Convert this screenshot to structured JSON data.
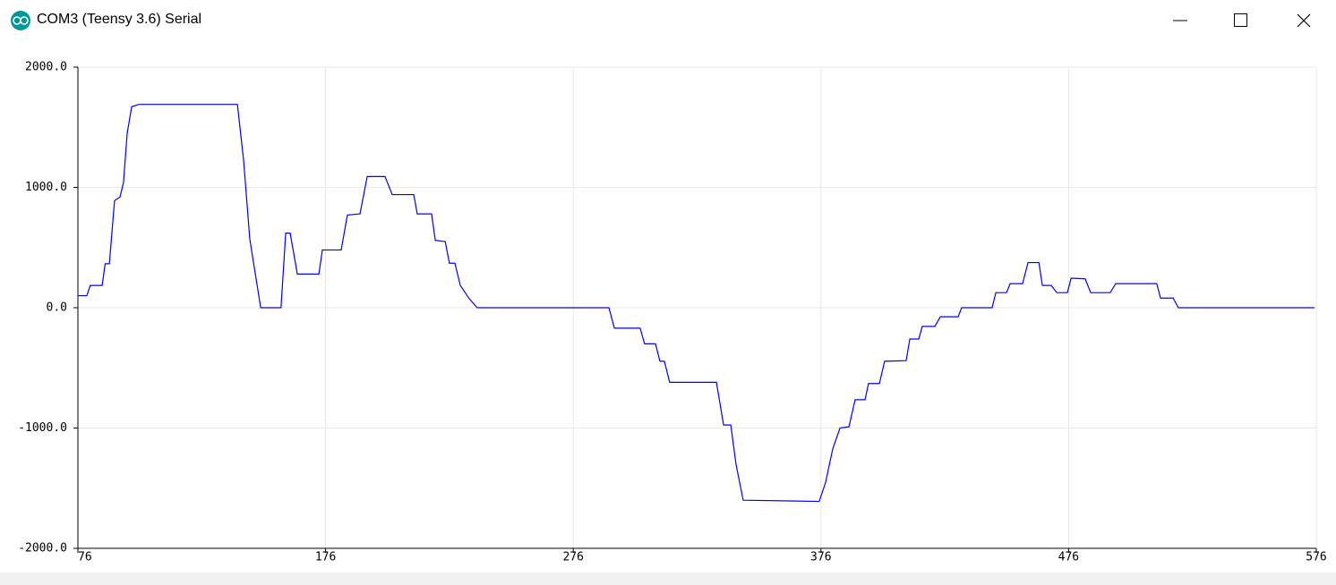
{
  "window": {
    "title": "COM3 (Teensy 3.6) Serial"
  },
  "chart_data": {
    "type": "line",
    "color": "#0000ff",
    "grid": true,
    "x": [
      76,
      79.6,
      81,
      85.8,
      87,
      88.7,
      90.8,
      93,
      94.4,
      95.9,
      97.7,
      100.6,
      140.4,
      142.9,
      145.4,
      149.8,
      158,
      159.9,
      161.7,
      164.6,
      173.3,
      174.7,
      182.3,
      184.8,
      189.9,
      192.8,
      200,
      202.9,
      211.6,
      213,
      218.8,
      220.3,
      224.3,
      226,
      228.2,
      230.4,
      234,
      237.2,
      290.4,
      292.6,
      303,
      304.8,
      309.2,
      311,
      312.8,
      314.9,
      333.8,
      336.7,
      339.6,
      341.7,
      344.6,
      375.3,
      377.9,
      380.8,
      383.7,
      387.3,
      389.8,
      393.8,
      395.2,
      399.6,
      401.7,
      410.4,
      411.9,
      415.5,
      416.9,
      422,
      424.2,
      431.4,
      432.8,
      445.1,
      446.6,
      450.9,
      452.4,
      457.4,
      459.6,
      464,
      465.4,
      469,
      471.2,
      475.5,
      477,
      482.7,
      484.9,
      492.8,
      495,
      511.6,
      513.1,
      518.2,
      520.3,
      575.3
    ],
    "values": [
      100,
      100,
      185,
      185,
      365,
      365,
      890,
      920,
      1040,
      1450,
      1670,
      1690,
      1690,
      1225,
      570,
      0,
      0,
      620,
      620,
      280,
      280,
      480,
      480,
      770,
      780,
      1090,
      1090,
      940,
      940,
      780,
      780,
      560,
      550,
      370,
      370,
      185,
      75,
      0,
      0,
      -170,
      -170,
      -300,
      -300,
      -445,
      -445,
      -620,
      -620,
      -975,
      -975,
      -1300,
      -1600,
      -1610,
      -1450,
      -1170,
      -1000,
      -990,
      -765,
      -765,
      -630,
      -630,
      -445,
      -440,
      -260,
      -260,
      -155,
      -155,
      -75,
      -75,
      0,
      0,
      125,
      125,
      200,
      200,
      375,
      375,
      185,
      185,
      125,
      125,
      245,
      240,
      125,
      125,
      200,
      200,
      80,
      80,
      0,
      0
    ],
    "xlim": [
      76,
      576
    ],
    "xticks": [
      76,
      176,
      276,
      376,
      476,
      576
    ],
    "ylim": [
      -2000,
      2000
    ],
    "yticks": [
      {
        "value": -2000,
        "label": "-2000.0"
      },
      {
        "value": -1000,
        "label": "-1000.0"
      },
      {
        "value": 0,
        "label": "0.0"
      },
      {
        "value": 1000,
        "label": "1000.0"
      },
      {
        "value": 2000,
        "label": "2000.0"
      }
    ]
  }
}
